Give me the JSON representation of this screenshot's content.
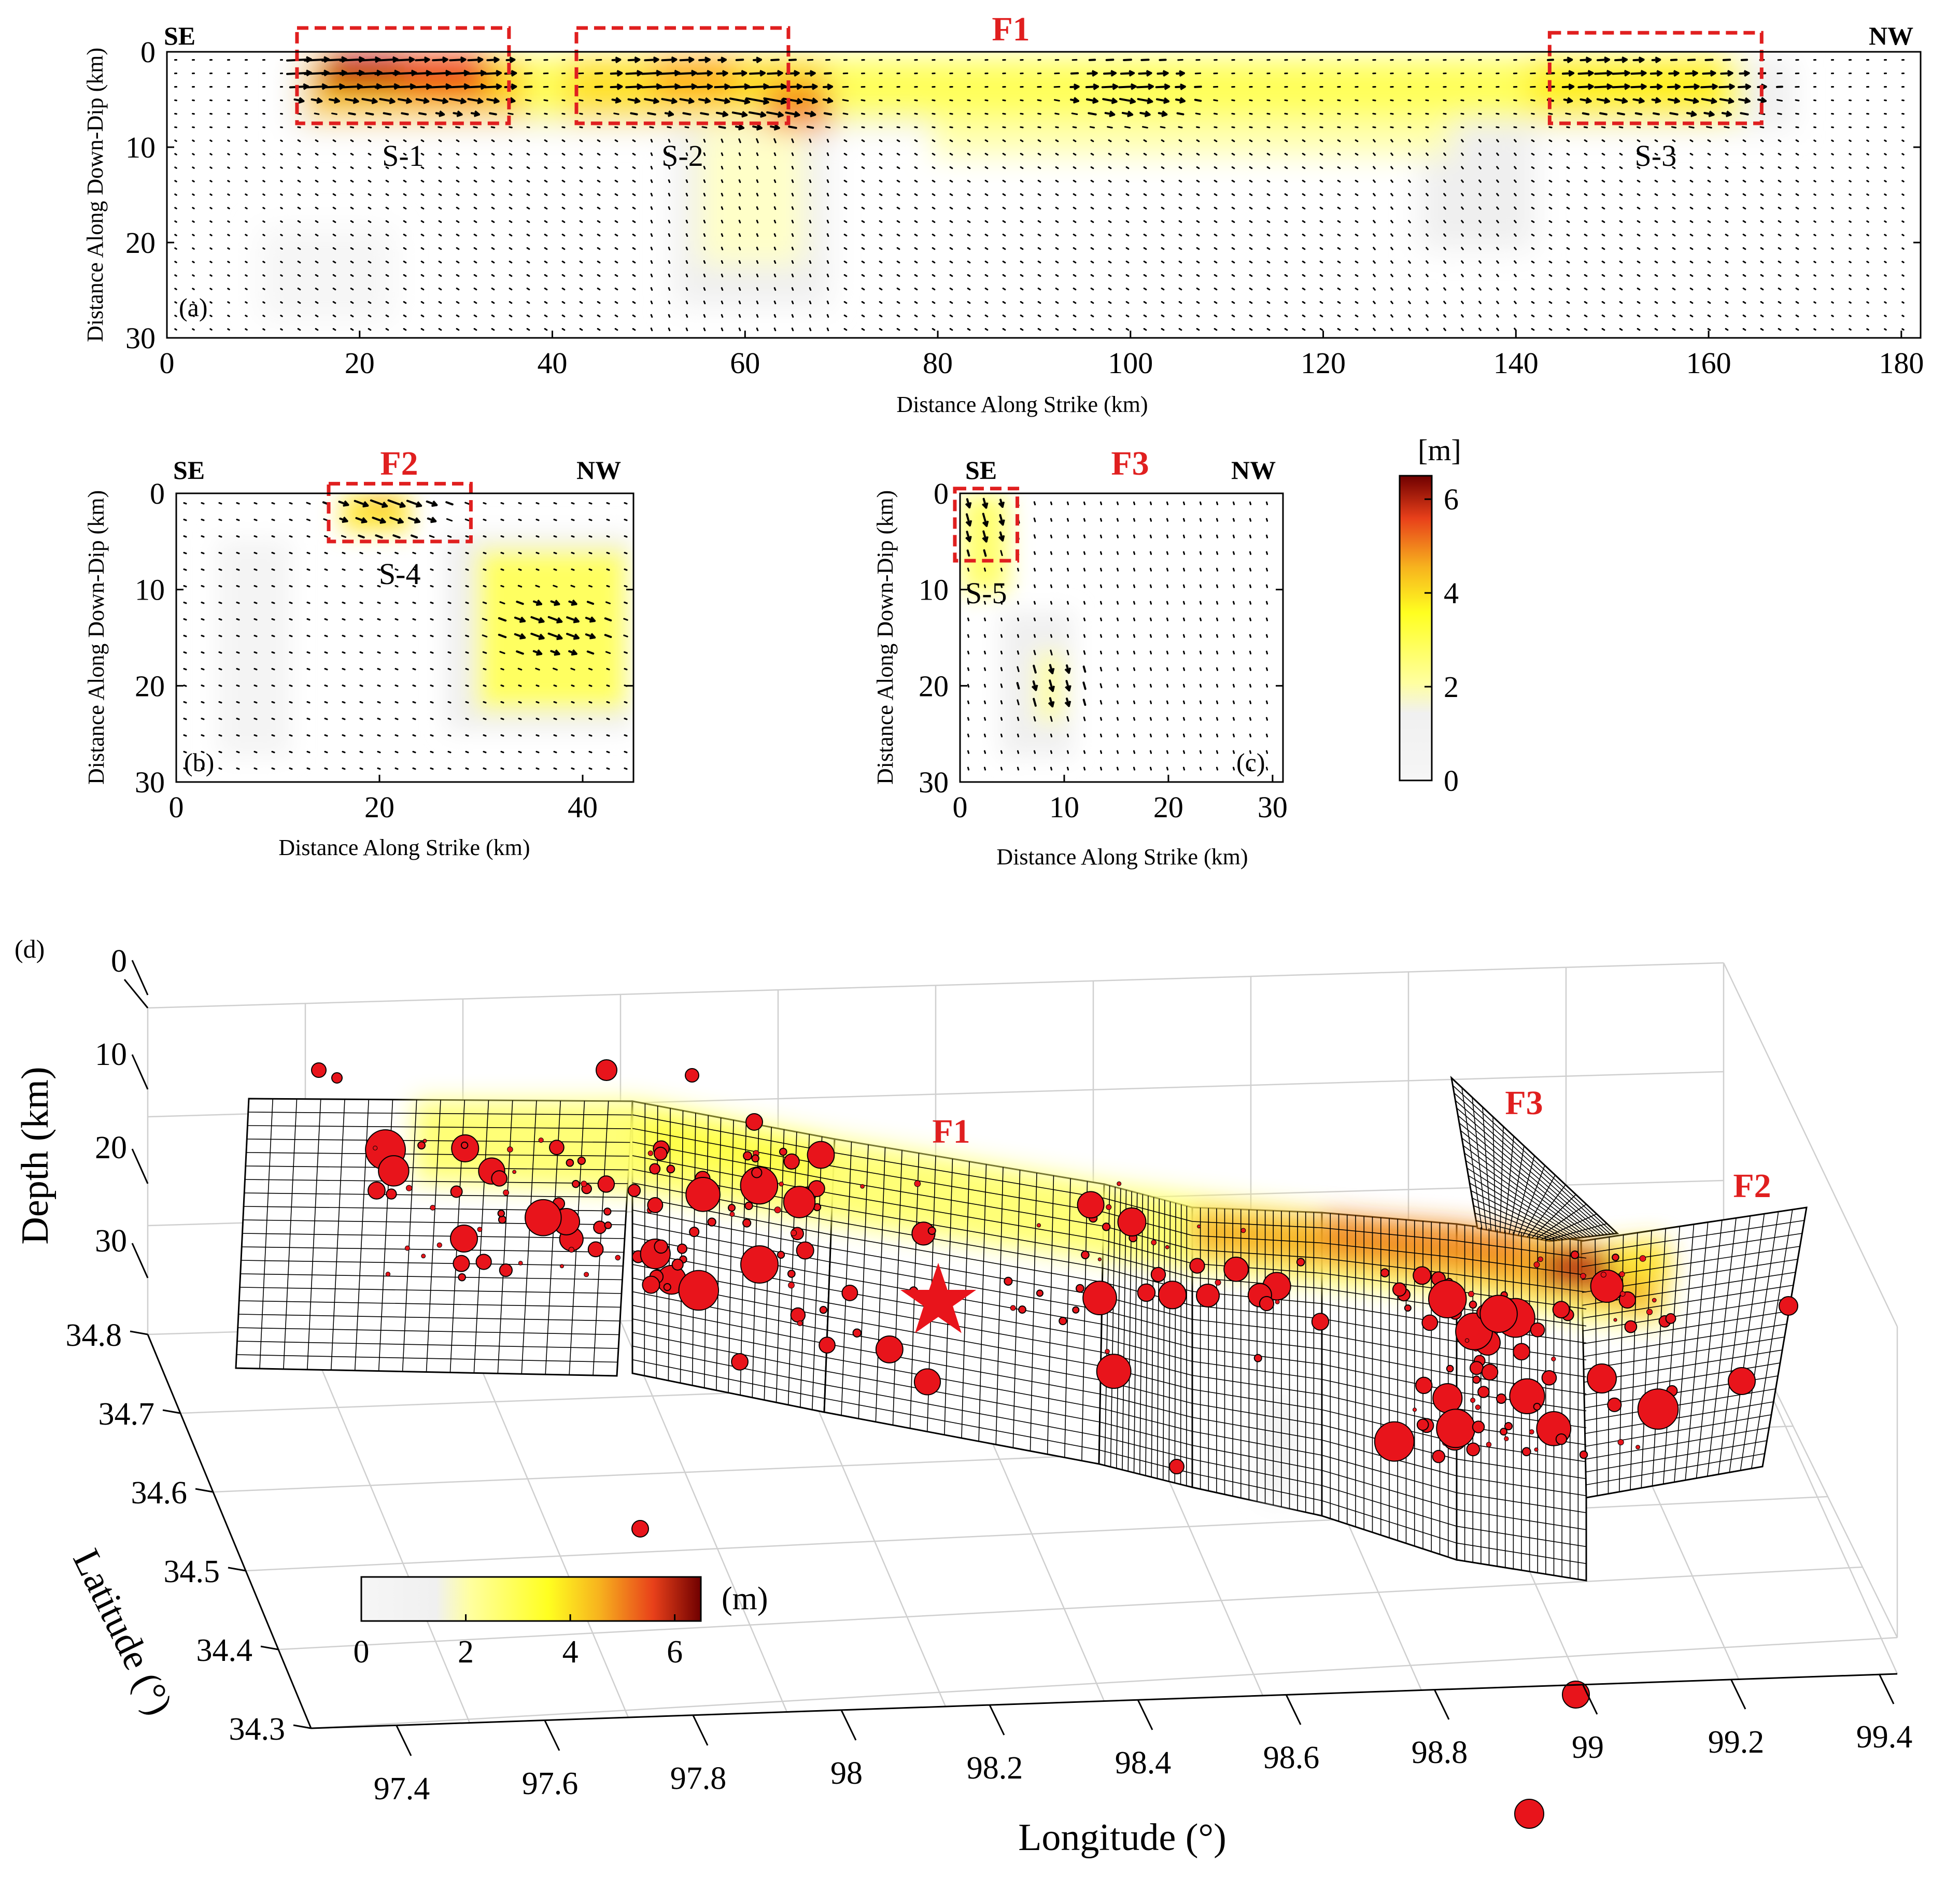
{
  "chart_data": [
    {
      "panel": "(a)",
      "type": "heatmap",
      "fault": "F1",
      "dir_left": "SE",
      "dir_right": "NW",
      "xlabel": "Distance  Along Strike (km)",
      "ylabel": "Distance Along Down-Dip (km)",
      "xlim": [
        0,
        182
      ],
      "ylim": [
        0,
        30
      ],
      "xticks": [
        "0",
        "20",
        "40",
        "60",
        "80",
        "100",
        "120",
        "140",
        "160",
        "180"
      ],
      "yticks": [
        "0",
        "10",
        "20",
        "30"
      ],
      "subfaults": [
        {
          "label": "S-1",
          "x_range": [
            13.5,
            35.5
          ],
          "y_range": [
            -2.5,
            7.5
          ]
        },
        {
          "label": "S-2",
          "x_range": [
            42.5,
            64.5
          ],
          "y_range": [
            -2.5,
            7.5
          ]
        },
        {
          "label": "S-3",
          "x_range": [
            143.5,
            165.5
          ],
          "y_range": [
            -2,
            7.5
          ]
        }
      ],
      "slip_patches": [
        {
          "x": 16,
          "y": 1.5,
          "slip_m": 6.3
        },
        {
          "x": 22,
          "y": 2.5,
          "slip_m": 5.4
        },
        {
          "x": 30,
          "y": 3,
          "slip_m": 4.6
        },
        {
          "x": 52,
          "y": 3,
          "slip_m": 4.2
        },
        {
          "x": 62,
          "y": 4.5,
          "slip_m": 4.6
        },
        {
          "x": 100,
          "y": 4,
          "slip_m": 3.2
        },
        {
          "x": 150,
          "y": 3,
          "slip_m": 3.4
        },
        {
          "x": 160,
          "y": 4,
          "slip_m": 3.0
        }
      ]
    },
    {
      "panel": "(b)",
      "type": "heatmap",
      "fault": "F2",
      "dir_left": "SE",
      "dir_right": "NW",
      "xlabel": "Distance  Along Strike (km)",
      "ylabel": "Distance Along Down-Dip (km)",
      "xlim": [
        0,
        45
      ],
      "ylim": [
        0,
        30
      ],
      "xticks": [
        "0",
        "20",
        "40"
      ],
      "yticks": [
        "0",
        "10",
        "20",
        "30"
      ],
      "subfaults": [
        {
          "label": "S-4",
          "x_range": [
            15,
            29
          ],
          "y_range": [
            -1,
            5
          ]
        }
      ],
      "slip_patches": [
        {
          "x": 21,
          "y": 1,
          "slip_m": 3.4
        },
        {
          "x": 37,
          "y": 14,
          "slip_m": 2.8
        }
      ]
    },
    {
      "panel": "(c)",
      "type": "heatmap",
      "fault": "F3",
      "dir_left": "SE",
      "dir_right": "NW",
      "xlabel": "Distance  Along Strike (km)",
      "ylabel": "Distance Along Down-Dip (km)",
      "xlim": [
        0,
        31
      ],
      "ylim": [
        0,
        30
      ],
      "xticks": [
        "0",
        "10",
        "20",
        "30"
      ],
      "yticks": [
        "0",
        "10",
        "20",
        "30"
      ],
      "subfaults": [
        {
          "label": "S-5",
          "x_range": [
            -0.5,
            5.5
          ],
          "y_range": [
            -0.5,
            7
          ]
        }
      ],
      "slip_patches": [
        {
          "x": 2,
          "y": 3,
          "slip_m": 2.4
        },
        {
          "x": 9,
          "y": 20,
          "slip_m": 2.0
        }
      ]
    },
    {
      "panel": "(d)",
      "type": "scatter3d",
      "xlabel": "Longitude (°)",
      "ylabel": "Latitude (°)",
      "zlabel": "Depth (km)",
      "xticks": [
        "97.4",
        "97.6",
        "97.8",
        "98",
        "98.2",
        "98.4",
        "98.6",
        "98.8",
        "99",
        "99.2",
        "99.4"
      ],
      "yticks": [
        "34.3",
        "34.4",
        "34.5",
        "34.6",
        "34.7",
        "34.8"
      ],
      "zticks": [
        "0",
        "10",
        "20",
        "30"
      ],
      "fault_labels": [
        "F1",
        "F2",
        "F3"
      ],
      "epicenter_marker": "star",
      "colorbar_ticks": [
        "0",
        "2",
        "4",
        "6"
      ],
      "colorbar_unit": "(m)"
    }
  ],
  "colorbar": {
    "unit": "[m]",
    "ticks": [
      "6",
      "4",
      "2",
      "0"
    ],
    "range": [
      0,
      6.5
    ]
  },
  "colors": {
    "slip_low": "#f2f2f2",
    "slip_mid": "#ffff33",
    "slip_orange": "#f7931e",
    "slip_high": "#7f0000",
    "box": "#e01f1f",
    "quake": "#e8141b",
    "label_red": "#e01f1f"
  }
}
